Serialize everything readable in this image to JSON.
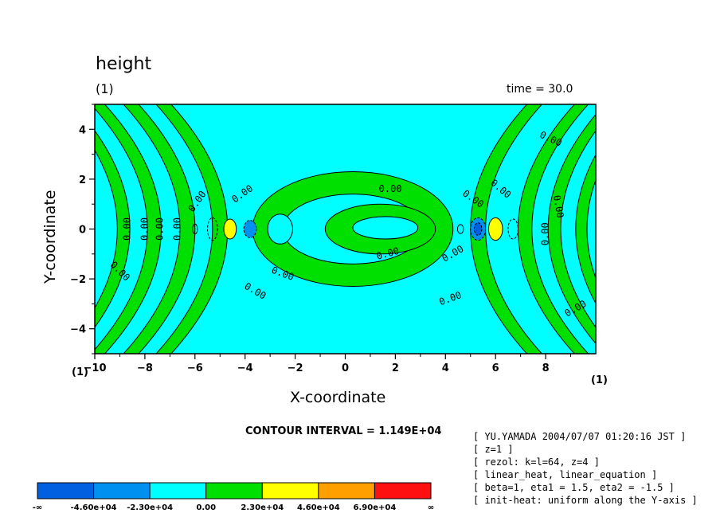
{
  "title": "height",
  "subtitle": "(1)",
  "time_label": "time = 30.0",
  "contour_interval": "CONTOUR INTERVAL = 1.149E+04",
  "unit_left": "(1)",
  "unit_right": "(1)",
  "info_lines": [
    "[ YU.YAMADA 2004/07/07 01:20:16 JST ]",
    "[ z=1 ]",
    "[ rezol: k=l=64, z=4 ]",
    "[ linear_heat, linear_equation ]",
    "[ beta=1, eta1 = 1.5, eta2 = -1.5 ]",
    "[ init-heat: uniform along the Y-axis ]"
  ],
  "colors": {
    "background_band": "#00ffff",
    "positive_band": "#00e000",
    "yellow": "#ffff00",
    "neg_mid": "#0090f0",
    "neg_deep": "#0060e0"
  },
  "chart_data": {
    "type": "heatmap",
    "xlabel": "X-coordinate",
    "ylabel": "Y-coordinate",
    "xlim": [
      -10,
      10
    ],
    "ylim": [
      -5,
      5
    ],
    "xticks": [
      -10,
      -8,
      -6,
      -4,
      -2,
      0,
      2,
      4,
      6,
      8
    ],
    "yticks": [
      -4,
      -2,
      0,
      2,
      4
    ],
    "contour_labels": [
      "0.00",
      "0.00",
      "0.00",
      "0.00",
      "0.00",
      "0.00",
      "0.00",
      "0.00",
      "0.00",
      "0.00",
      "0.00",
      "0.00",
      "0.00",
      "0.00",
      "0.00",
      "0.00",
      "0.00",
      "0.00",
      "0.00"
    ],
    "colorbar": {
      "labels": [
        "-∞",
        "-4.60e+04",
        "-2.30e+04",
        "0.00",
        "2.30e+04",
        "4.60e+04",
        "6.90e+04",
        "∞"
      ],
      "colors": [
        "#0060e0",
        "#0090f0",
        "#00ffff",
        "#00e000",
        "#ffff00",
        "#ffa000",
        "#ff1010"
      ]
    }
  }
}
